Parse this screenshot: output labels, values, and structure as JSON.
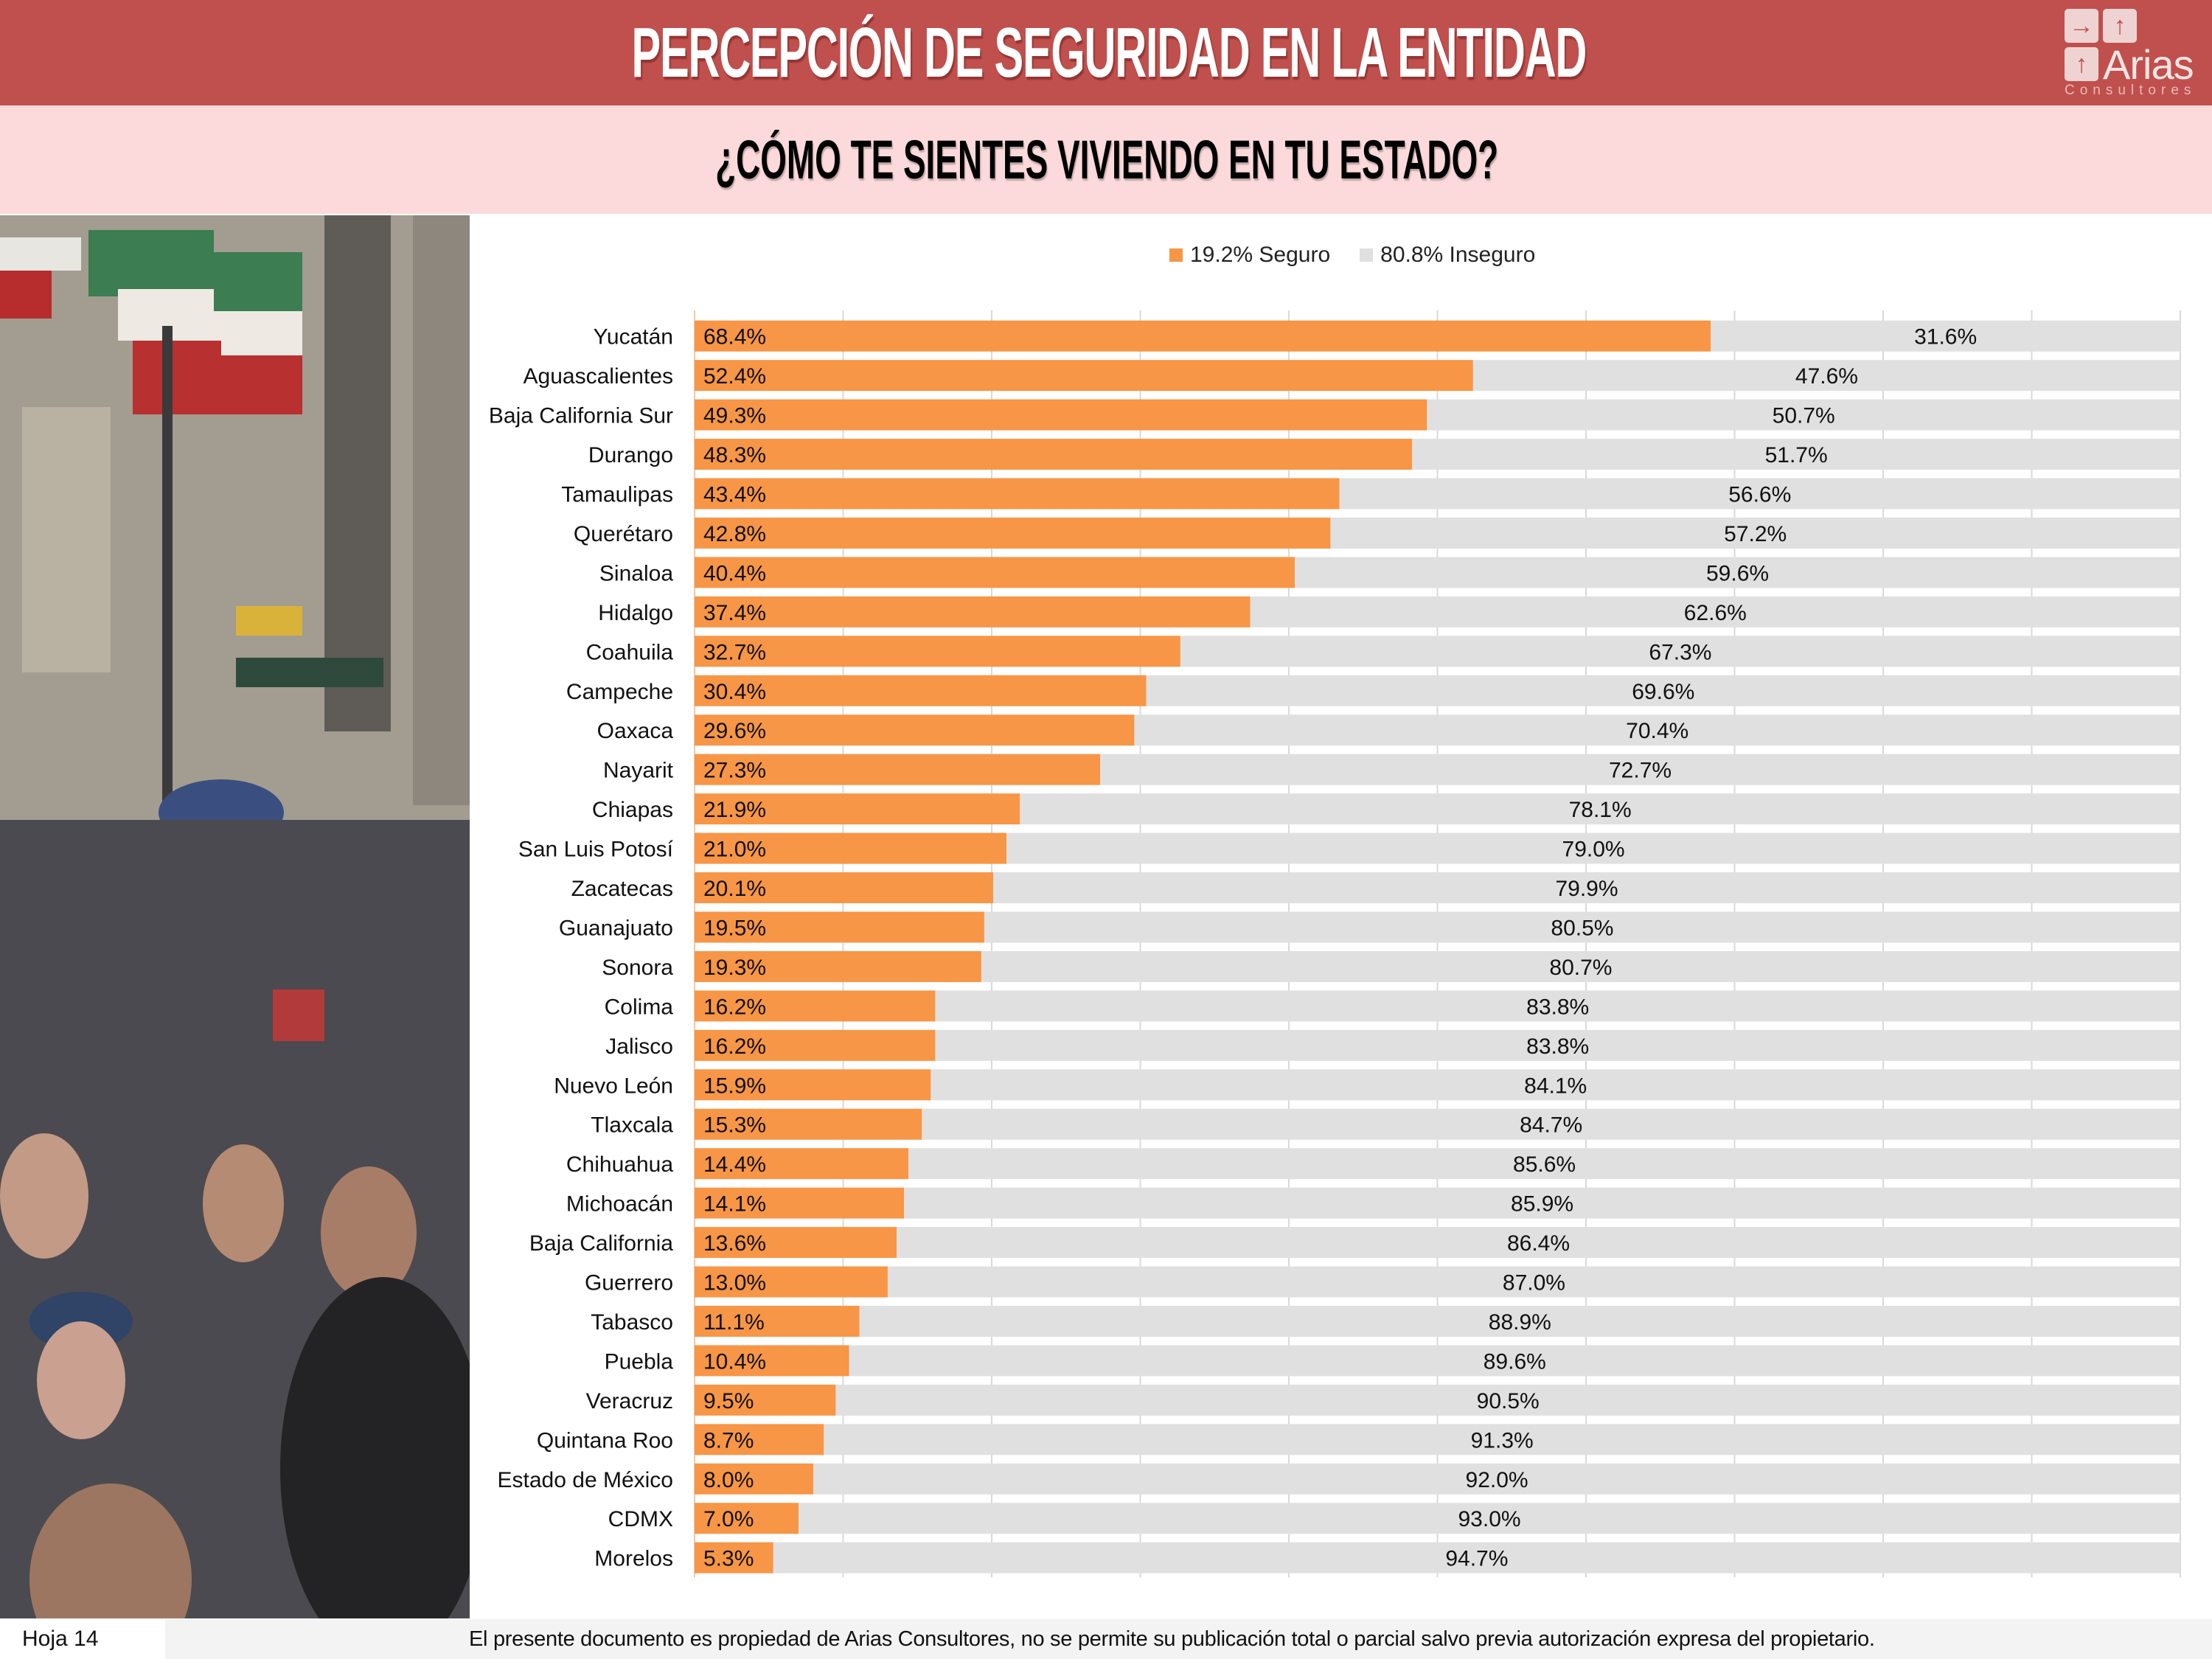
{
  "header": {
    "title": "PERCEPCIÓN DE SEGURIDAD EN LA ENTIDAD",
    "logo": {
      "name": "Arias",
      "subtitle": "Consultores",
      "icons": [
        "arrow-right-icon",
        "arrow-up-icon",
        "arrow-up-icon"
      ]
    }
  },
  "subheader": {
    "question": "¿CÓMO TE SIENTES VIVIENDO EN TU ESTADO?"
  },
  "photo": {
    "description": "Crowd on a street in Mexico City with Mexican flags"
  },
  "colors": {
    "header_bg": "#C0504D",
    "subheader_bg": "#FCDADB",
    "seguro": "#F79646",
    "inseguro": "#E0E0E0"
  },
  "chart_data": {
    "type": "bar",
    "orientation": "horizontal",
    "stacked": true,
    "title": "",
    "xlabel": "",
    "ylabel": "",
    "xlim": [
      0,
      100
    ],
    "grid": true,
    "legend_position": "top-center",
    "legend": [
      {
        "label": "19.2% Seguro",
        "color": "#F79646"
      },
      {
        "label": "80.8% Inseguro",
        "color": "#E0E0E0"
      }
    ],
    "categories": [
      "Yucatán",
      "Aguascalientes",
      "Baja California Sur",
      "Durango",
      "Tamaulipas",
      "Querétaro",
      "Sinaloa",
      "Hidalgo",
      "Coahuila",
      "Campeche",
      "Oaxaca",
      "Nayarit",
      "Chiapas",
      "San Luis Potosí",
      "Zacatecas",
      "Guanajuato",
      "Sonora",
      "Colima",
      "Jalisco",
      "Nuevo León",
      "Tlaxcala",
      "Chihuahua",
      "Michoacán",
      "Baja California",
      "Guerrero",
      "Tabasco",
      "Puebla",
      "Veracruz",
      "Quintana Roo",
      "Estado de México",
      "CDMX",
      "Morelos"
    ],
    "series": [
      {
        "name": "Seguro",
        "color": "#F79646",
        "values": [
          68.4,
          52.4,
          49.3,
          48.3,
          43.4,
          42.8,
          40.4,
          37.4,
          32.7,
          30.4,
          29.6,
          27.3,
          21.9,
          21.0,
          20.1,
          19.5,
          19.3,
          16.2,
          16.2,
          15.9,
          15.3,
          14.4,
          14.1,
          13.6,
          13.0,
          11.1,
          10.4,
          9.5,
          8.7,
          8.0,
          7.0,
          5.3
        ],
        "labels": [
          "68.4%",
          "52.4%",
          "49.3%",
          "48.3%",
          "43.4%",
          "42.8%",
          "40.4%",
          "37.4%",
          "32.7%",
          "30.4%",
          "29.6%",
          "27.3%",
          "21.9%",
          "21.0%",
          "20.1%",
          "19.5%",
          "19.3%",
          "16.2%",
          "16.2%",
          "15.9%",
          "15.3%",
          "14.4%",
          "14.1%",
          "13.6%",
          "13.0%",
          "11.1%",
          "10.4%",
          "9.5%",
          "8.7%",
          "8.0%",
          "7.0%",
          "5.3%"
        ]
      },
      {
        "name": "Inseguro",
        "color": "#E0E0E0",
        "values": [
          31.6,
          47.6,
          50.7,
          51.7,
          56.6,
          57.2,
          59.6,
          62.6,
          67.3,
          69.6,
          70.4,
          72.7,
          78.1,
          79.0,
          79.9,
          80.5,
          80.7,
          83.8,
          83.8,
          84.1,
          84.7,
          85.6,
          85.9,
          86.4,
          87.0,
          88.9,
          89.6,
          90.5,
          91.3,
          92.0,
          93.0,
          94.7
        ],
        "labels": [
          "31.6%",
          "47.6%",
          "50.7%",
          "51.7%",
          "56.6%",
          "57.2%",
          "59.6%",
          "62.6%",
          "67.3%",
          "69.6%",
          "70.4%",
          "72.7%",
          "78.1%",
          "79.0%",
          "79.9%",
          "80.5%",
          "80.7%",
          "83.8%",
          "83.8%",
          "84.1%",
          "84.7%",
          "85.6%",
          "85.9%",
          "86.4%",
          "87.0%",
          "88.9%",
          "89.6%",
          "90.5%",
          "91.3%",
          "92.0%",
          "93.0%",
          "94.7%"
        ]
      }
    ]
  },
  "footer": {
    "page": "Hoja 14",
    "notice": "El presente documento es propiedad de Arias Consultores, no se permite su publicación total o parcial salvo previa autorización expresa del propietario."
  }
}
